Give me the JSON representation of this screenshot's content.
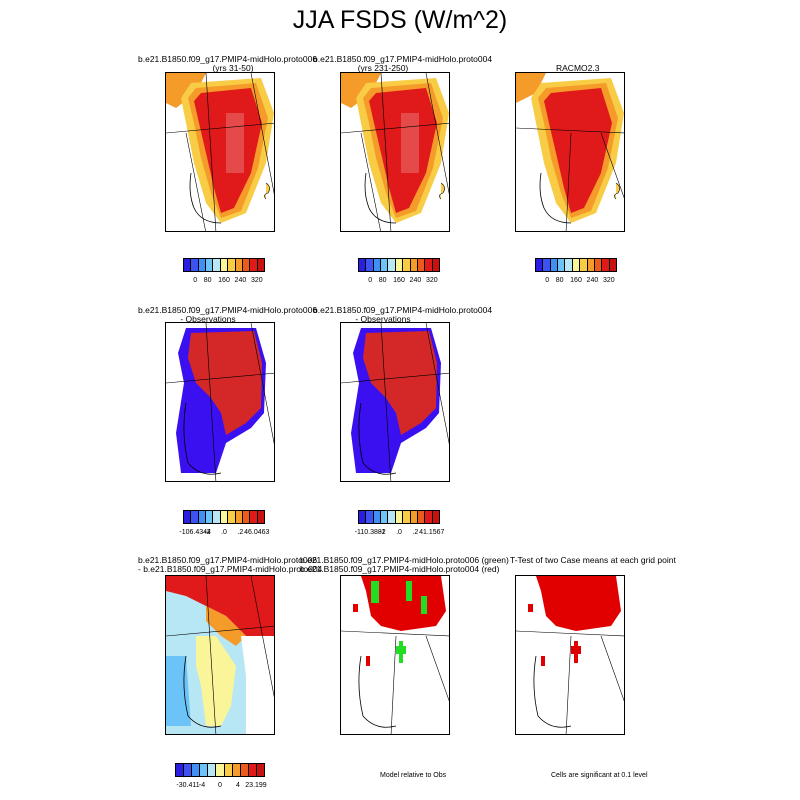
{
  "title": "JJA FSDS (W/m^2)",
  "panels": {
    "p1": {
      "line1": "b.e21.B1850.f09_g17.PMIP4-midHolo.proto006",
      "line2": "(yrs 31-50)"
    },
    "p2": {
      "line1": "b.e21.B1850.f09_g17.PMIP4-midHolo.proto004",
      "line2": "(yrs 231-250)"
    },
    "p3": {
      "line1": "RACMO2.3"
    },
    "p4": {
      "line1": "b.e21.B1850.f09_g17.PMIP4-midHolo.proto006",
      "line2": "- Observations"
    },
    "p5": {
      "line1": "b.e21.B1850.f09_g17.PMIP4-midHolo.proto004",
      "line2": "- Observations"
    },
    "p6": {
      "line1": "b.e21.B1850.f09_g17.PMIP4-midHolo.proto006",
      "line2": "- b.e21.B1850.f09_g17.PMIP4-midHolo.proto004"
    },
    "p7": {
      "line1": "b.e21.B1850.f09_g17.PMIP4-midHolo.proto006 (green)",
      "line2": "b.e21.B1850.f09_g17.PMIP4-midHolo.proto004 (red)"
    },
    "p8": {
      "line1": "T-Test of two Case means at each grid point"
    }
  },
  "colorbars": {
    "abs": {
      "colors": [
        "#2a1ee0",
        "#3d52f0",
        "#3f8ff5",
        "#6cc3f7",
        "#b7e6f5",
        "#fbf59a",
        "#f9cc45",
        "#f59b2a",
        "#ec5a1c",
        "#e01a1a",
        "#c8120f"
      ],
      "labels": [
        "0",
        "80",
        "160",
        "240",
        "320"
      ]
    },
    "diff1": {
      "labels": [
        "-106.4344",
        "-2",
        ".0",
        ".2",
        "46.0463"
      ]
    },
    "diff2": {
      "labels": [
        "-110.3881",
        "-2",
        ".0",
        ".2",
        "41.1567"
      ]
    },
    "diff3": {
      "labels": [
        "-30.411",
        "-4",
        "0",
        "4",
        "23.199"
      ]
    }
  },
  "notes": {
    "model_rel": "Model relative to Obs",
    "cells_sig": "Cells are significant at 0.1 level"
  },
  "colors": {
    "red": "#e00000",
    "green": "#22dd22",
    "blue": "#3a10f0",
    "deepred": "#d42828"
  }
}
